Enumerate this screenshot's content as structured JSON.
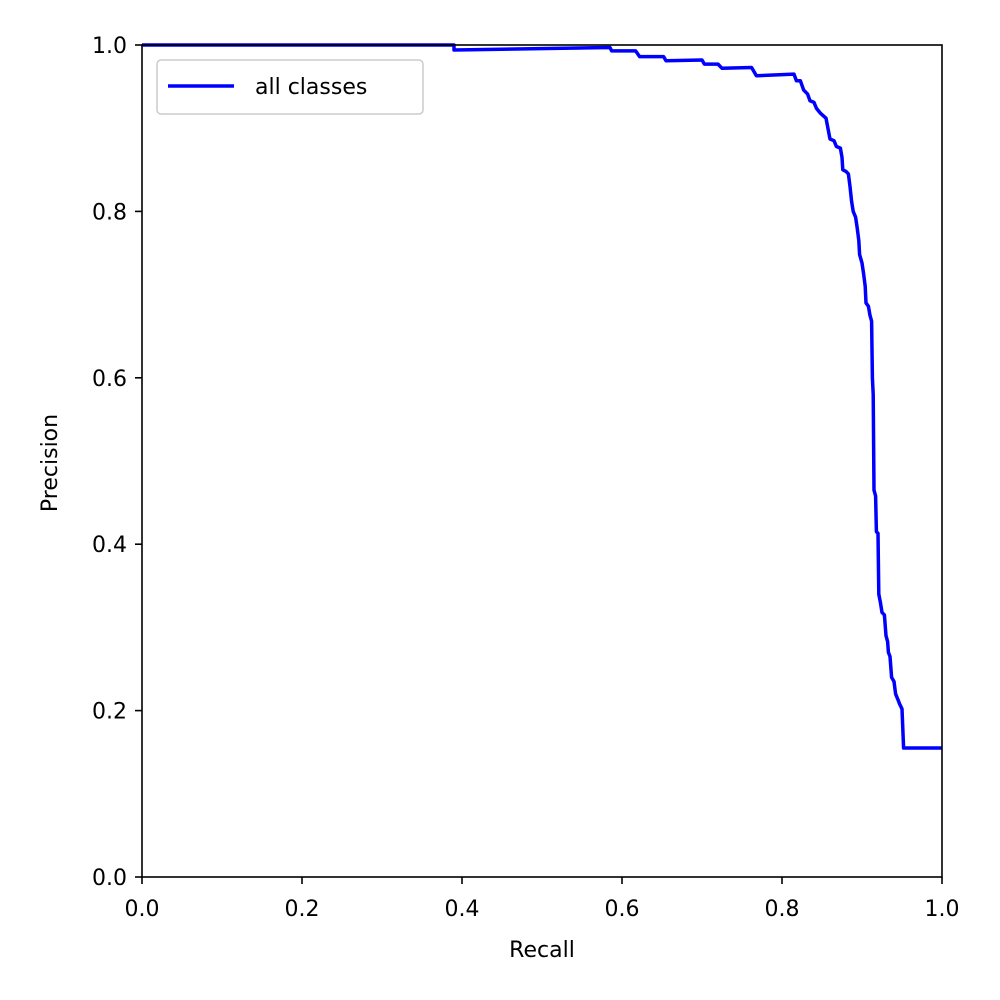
{
  "chart_data": {
    "type": "line",
    "title": "",
    "xlabel": "Recall",
    "ylabel": "Precision",
    "xlim": [
      0.0,
      1.0
    ],
    "ylim": [
      0.0,
      1.0
    ],
    "xticks": [
      "0.0",
      "0.2",
      "0.4",
      "0.6",
      "0.8",
      "1.0"
    ],
    "yticks": [
      "0.0",
      "0.2",
      "0.4",
      "0.6",
      "0.8",
      "1.0"
    ],
    "grid": false,
    "legend_position": "top-left",
    "series": [
      {
        "name": "all classes",
        "color": "#0000ff",
        "points": [
          [
            0.0,
            1.0
          ],
          [
            0.39,
            1.0
          ],
          [
            0.39,
            0.994
          ],
          [
            0.585,
            0.997
          ],
          [
            0.587,
            0.993
          ],
          [
            0.617,
            0.993
          ],
          [
            0.622,
            0.986
          ],
          [
            0.652,
            0.986
          ],
          [
            0.655,
            0.981
          ],
          [
            0.7,
            0.982
          ],
          [
            0.703,
            0.977
          ],
          [
            0.72,
            0.977
          ],
          [
            0.725,
            0.972
          ],
          [
            0.762,
            0.973
          ],
          [
            0.768,
            0.963
          ],
          [
            0.815,
            0.965
          ],
          [
            0.818,
            0.957
          ],
          [
            0.823,
            0.957
          ],
          [
            0.827,
            0.946
          ],
          [
            0.832,
            0.941
          ],
          [
            0.835,
            0.933
          ],
          [
            0.84,
            0.931
          ],
          [
            0.843,
            0.924
          ],
          [
            0.848,
            0.918
          ],
          [
            0.855,
            0.912
          ],
          [
            0.858,
            0.897
          ],
          [
            0.86,
            0.887
          ],
          [
            0.865,
            0.885
          ],
          [
            0.868,
            0.878
          ],
          [
            0.873,
            0.876
          ],
          [
            0.875,
            0.865
          ],
          [
            0.876,
            0.85
          ],
          [
            0.88,
            0.848
          ],
          [
            0.883,
            0.845
          ],
          [
            0.885,
            0.83
          ],
          [
            0.887,
            0.812
          ],
          [
            0.889,
            0.8
          ],
          [
            0.892,
            0.793
          ],
          [
            0.894,
            0.78
          ],
          [
            0.896,
            0.765
          ],
          [
            0.897,
            0.748
          ],
          [
            0.9,
            0.738
          ],
          [
            0.902,
            0.725
          ],
          [
            0.904,
            0.71
          ],
          [
            0.905,
            0.69
          ],
          [
            0.908,
            0.686
          ],
          [
            0.91,
            0.675
          ],
          [
            0.912,
            0.668
          ],
          [
            0.913,
            0.6
          ],
          [
            0.914,
            0.58
          ],
          [
            0.915,
            0.465
          ],
          [
            0.917,
            0.458
          ],
          [
            0.918,
            0.415
          ],
          [
            0.92,
            0.413
          ],
          [
            0.921,
            0.34
          ],
          [
            0.923,
            0.33
          ],
          [
            0.925,
            0.318
          ],
          [
            0.928,
            0.315
          ],
          [
            0.93,
            0.29
          ],
          [
            0.932,
            0.283
          ],
          [
            0.933,
            0.27
          ],
          [
            0.935,
            0.265
          ],
          [
            0.937,
            0.24
          ],
          [
            0.94,
            0.235
          ],
          [
            0.942,
            0.22
          ],
          [
            0.945,
            0.213
          ],
          [
            0.947,
            0.208
          ],
          [
            0.95,
            0.202
          ],
          [
            0.952,
            0.155
          ],
          [
            1.0,
            0.155
          ]
        ]
      }
    ]
  }
}
